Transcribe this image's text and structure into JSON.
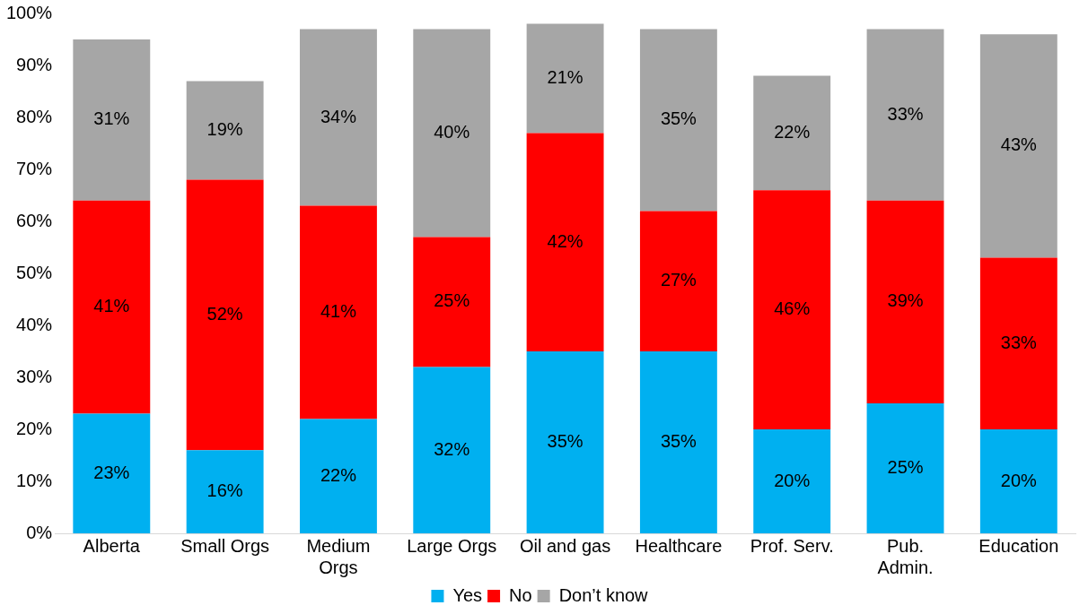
{
  "chart_data": {
    "type": "bar",
    "stacked": true,
    "categories": [
      "Alberta",
      "Small Orgs",
      "Medium Orgs",
      "Large Orgs",
      "Oil and gas",
      "Healthcare",
      "Prof. Serv.",
      "Pub. Admin.",
      "Education"
    ],
    "series": [
      {
        "name": "Yes",
        "color": "#00b0f0",
        "values": [
          23,
          16,
          22,
          32,
          35,
          35,
          20,
          25,
          20
        ],
        "value_labels": [
          "23%",
          "16%",
          "22%",
          "32%",
          "35%",
          "35%",
          "20%",
          "25%",
          "20%"
        ]
      },
      {
        "name": "No",
        "color": "#ff0000",
        "values": [
          41,
          52,
          41,
          25,
          42,
          27,
          46,
          39,
          33
        ],
        "value_labels": [
          "41%",
          "52%",
          "41%",
          "25%",
          "42%",
          "27%",
          "46%",
          "39%",
          "33%"
        ]
      },
      {
        "name": "Don’t know",
        "color": "#a6a6a6",
        "values": [
          31,
          19,
          34,
          40,
          21,
          35,
          22,
          33,
          43
        ],
        "value_labels": [
          "31%",
          "19%",
          "34%",
          "40%",
          "21%",
          "35%",
          "22%",
          "33%",
          "43%"
        ]
      }
    ],
    "ylim": [
      0,
      100
    ],
    "yticks": [
      {
        "value": 0,
        "label": "0%"
      },
      {
        "value": 10,
        "label": "10%"
      },
      {
        "value": 20,
        "label": "20%"
      },
      {
        "value": 30,
        "label": "30%"
      },
      {
        "value": 40,
        "label": "40%"
      },
      {
        "value": 50,
        "label": "50%"
      },
      {
        "value": 60,
        "label": "60%"
      },
      {
        "value": 70,
        "label": "70%"
      },
      {
        "value": 80,
        "label": "80%"
      },
      {
        "value": 90,
        "label": "90%"
      },
      {
        "value": 100,
        "label": "100%"
      }
    ],
    "grid": false,
    "legend": "bottom"
  }
}
